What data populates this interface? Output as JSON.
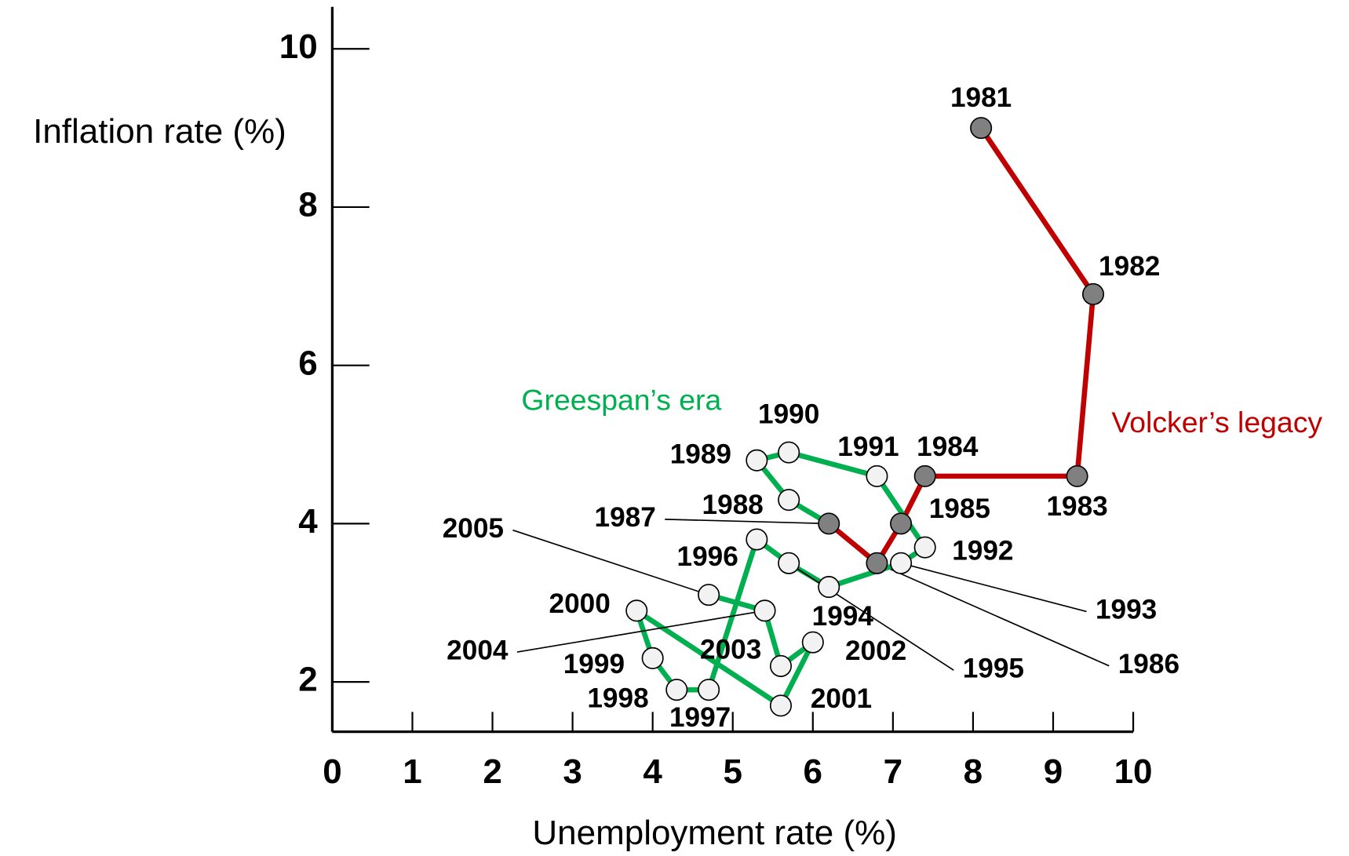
{
  "chart_data": {
    "type": "line",
    "xlabel": "Unemployment rate (%)",
    "ylabel": "Inflation rate (%)",
    "xlim": [
      0,
      10
    ],
    "ylim": [
      1.37,
      10.53
    ],
    "xticks": [
      0,
      1,
      2,
      3,
      4,
      5,
      6,
      7,
      8,
      9,
      10
    ],
    "yticks": [
      2,
      4,
      6,
      8,
      10
    ],
    "series": [
      {
        "name": "Volcker’s legacy",
        "color": "#c00000",
        "marker_color": "#808080",
        "labels": [
          "1981",
          "1982",
          "1983",
          "1984",
          "1985",
          "1986",
          "1987"
        ],
        "x": [
          8.1,
          9.5,
          9.3,
          7.4,
          7.1,
          6.8,
          6.2
        ],
        "values": [
          9.0,
          6.9,
          4.6,
          4.6,
          4.0,
          3.5,
          4.0
        ]
      },
      {
        "name": "Greespan’s era",
        "color": "#00b050",
        "marker_color": "#f2f2f2",
        "labels": [
          "1988",
          "1989",
          "1990",
          "1991",
          "1992",
          "1993",
          "1994",
          "1995",
          "1996",
          "1997",
          "1998",
          "1999",
          "2000",
          "2001",
          "2002",
          "2003",
          "2004",
          "2005"
        ],
        "x": [
          5.7,
          5.3,
          5.7,
          6.8,
          7.4,
          7.1,
          6.2,
          5.7,
          5.3,
          4.7,
          4.3,
          4.0,
          3.8,
          5.6,
          6.0,
          5.6,
          5.4,
          4.7
        ],
        "values": [
          4.3,
          4.8,
          4.9,
          4.6,
          3.7,
          3.5,
          3.2,
          3.5,
          3.8,
          1.9,
          1.9,
          2.3,
          2.9,
          1.7,
          2.5,
          2.2,
          2.9,
          3.1
        ]
      }
    ]
  }
}
